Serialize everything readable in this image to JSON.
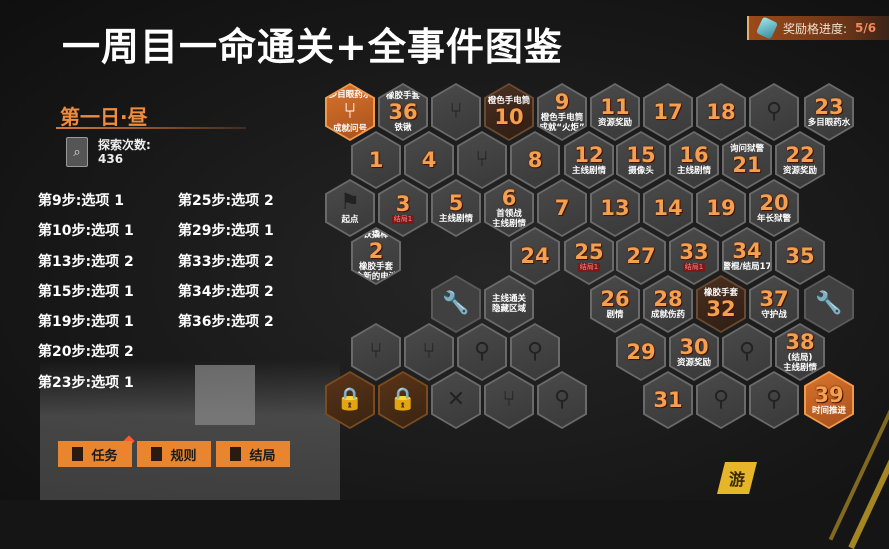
{
  "title": "一周目一命通关+全事件图鉴",
  "reward": {
    "label": "奖励格进度:",
    "value": "5/6",
    "icon": "bottle-icon"
  },
  "day": "第一日·昼",
  "explore": {
    "label": "探索次数:",
    "value": "436",
    "icon": "magnifier-card-icon"
  },
  "steps": [
    "第9步:选项 1",
    "第10步:选项 1",
    "第13步:选项 2",
    "第15步:选项 1",
    "第19步:选项 1",
    "第20步:选项 2",
    "第23步:选项 1",
    "第25步:选项 2",
    "第29步:选项 1",
    "第33步:选项 2",
    "第34步:选项 2",
    "第36步:选项 2"
  ],
  "buttons": [
    {
      "label": "任务",
      "icon": "task-icon"
    },
    {
      "label": "规则",
      "icon": "rules-book-icon"
    },
    {
      "label": "结局",
      "icon": "ending-door-icon"
    }
  ],
  "colors": {
    "accent": "#e8852e",
    "number": "#f3a050",
    "bg": "#151515"
  },
  "cells": [
    {
      "type": "orange",
      "top": "多目眼药水",
      "bottom": "成就问号",
      "icon": "branch-icon"
    },
    {
      "num": "36",
      "top": "橡胶手套",
      "bottom": "铁锹"
    },
    {
      "icon": "branch-icon"
    },
    {
      "type": "brown",
      "num": "10",
      "top": "橙色手电筒"
    },
    {
      "num": "9",
      "bottom": "橙色手电筒",
      "bottom2": "成就“火炬”"
    },
    {
      "num": "11",
      "bottom": "资源奖励"
    },
    {
      "num": "17"
    },
    {
      "num": "18"
    },
    {
      "icon": "search-icon"
    },
    {
      "num": "23",
      "bottom": "多目眼药水"
    },
    {
      "num": "1"
    },
    {
      "num": "4"
    },
    {
      "icon": "branch-icon"
    },
    {
      "num": "8"
    },
    {
      "num": "12",
      "bottom": "主线剧情"
    },
    {
      "num": "15",
      "bottom": "摄像头"
    },
    {
      "num": "16",
      "bottom": "主线剧情"
    },
    {
      "num": "21",
      "top": "询问狱警"
    },
    {
      "num": "22",
      "bottom": "资源奖励"
    },
    {
      "bottom": "起点",
      "icon": "flag-icon"
    },
    {
      "num": "3",
      "badge": "结局1"
    },
    {
      "num": "5",
      "bottom": "主线剧情"
    },
    {
      "num": "6",
      "bottom": "首领战",
      "bottom2": "主线剧情"
    },
    {
      "num": "7"
    },
    {
      "num": "13"
    },
    {
      "num": "14"
    },
    {
      "num": "19"
    },
    {
      "num": "20",
      "bottom": "年长狱警"
    },
    {
      "num": "2",
      "top": "铁撬棒",
      "bottom": "橡胶手套",
      "bottom2": "全新的电池"
    },
    {
      "num": "24"
    },
    {
      "num": "25",
      "badge": "结局1"
    },
    {
      "num": "27"
    },
    {
      "num": "33",
      "badge": "结局1"
    },
    {
      "num": "34",
      "bottom": "警棍/结局17"
    },
    {
      "num": "35"
    },
    {
      "type": "dim",
      "icon": "wrench-icon"
    },
    {
      "bottom": "主线通关",
      "bottom2": "隐藏区域"
    },
    {
      "num": "26",
      "bottom": "剧情"
    },
    {
      "num": "28",
      "bottom": "成就伤药"
    },
    {
      "type": "brown",
      "num": "32",
      "top": "橡胶手套"
    },
    {
      "num": "37",
      "bottom": "守护战"
    },
    {
      "type": "dim",
      "icon": "wrench-icon"
    },
    {
      "icon": "branch-icon"
    },
    {
      "icon": "branch-icon"
    },
    {
      "icon": "search-icon"
    },
    {
      "icon": "search-icon"
    },
    {
      "num": "29"
    },
    {
      "num": "30",
      "bottom": "资源奖励"
    },
    {
      "icon": "search-icon"
    },
    {
      "num": "38",
      "bottom": "(结局)",
      "bottom2": "主线剧情"
    },
    {
      "type": "locked",
      "icon": "lock-icon"
    },
    {
      "type": "locked",
      "icon": "lock-icon"
    },
    {
      "icon": "close-x-icon"
    },
    {
      "icon": "branch-icon"
    },
    {
      "icon": "search-icon"
    },
    {
      "num": "31"
    },
    {
      "icon": "search-icon"
    },
    {
      "icon": "search-icon"
    },
    {
      "type": "orange",
      "num": "39",
      "bottom": "时间推进"
    }
  ],
  "logo": "游"
}
